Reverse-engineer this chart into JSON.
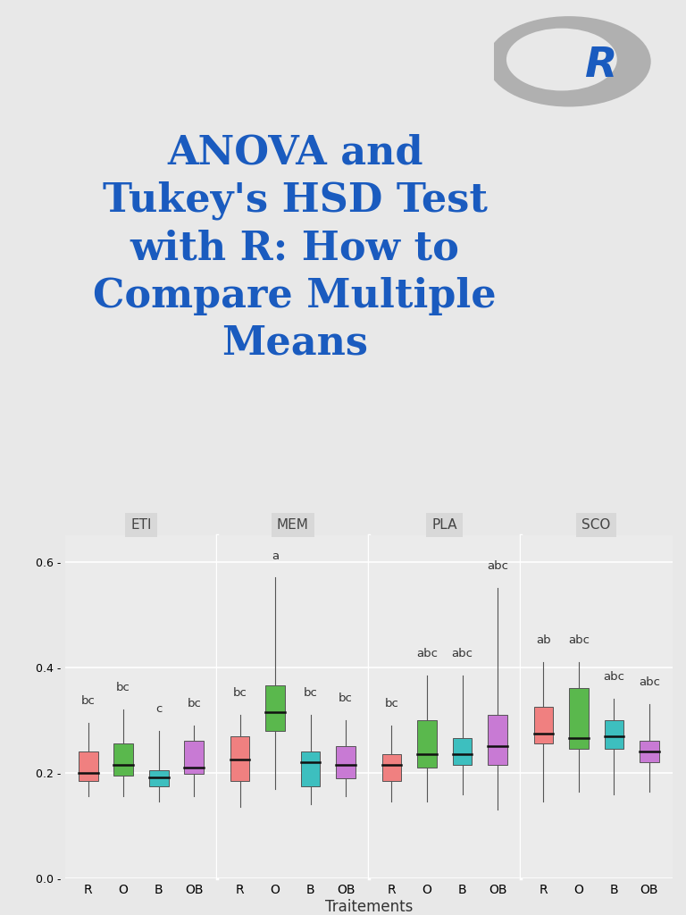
{
  "title": "ANOVA and\nTukey's HSD Test\nwith R: How to\nCompare Multiple\nMeans",
  "title_color": "#1a5bbf",
  "background_color": "#e8e8e8",
  "plot_bg_color": "#ebebeb",
  "panel_header_color": "#d8d8d8",
  "xlabel": "Traitements",
  "panels": [
    "ETI",
    "MEM",
    "PLA",
    "SCO"
  ],
  "treatments": [
    "R",
    "O",
    "B",
    "OB"
  ],
  "colors": [
    "#f08080",
    "#5ab84d",
    "#3dbfbf",
    "#c87ad4"
  ],
  "ylim": [
    0.0,
    0.65
  ],
  "yticks": [
    0.0,
    0.2,
    0.4,
    0.6
  ],
  "ytick_labels": [
    "0.0 -",
    "0.2 -",
    "0.4 -",
    "0.6 -"
  ],
  "boxes": {
    "ETI": {
      "R": {
        "q1": 0.185,
        "median": 0.2,
        "q3": 0.24,
        "whislo": 0.155,
        "whishi": 0.295
      },
      "O": {
        "q1": 0.195,
        "median": 0.215,
        "q3": 0.255,
        "whislo": 0.155,
        "whishi": 0.32
      },
      "B": {
        "q1": 0.175,
        "median": 0.192,
        "q3": 0.205,
        "whislo": 0.145,
        "whishi": 0.28
      },
      "OB": {
        "q1": 0.198,
        "median": 0.21,
        "q3": 0.26,
        "whislo": 0.155,
        "whishi": 0.29
      }
    },
    "MEM": {
      "R": {
        "q1": 0.185,
        "median": 0.225,
        "q3": 0.27,
        "whislo": 0.135,
        "whishi": 0.31
      },
      "O": {
        "q1": 0.28,
        "median": 0.315,
        "q3": 0.365,
        "whislo": 0.17,
        "whishi": 0.57
      },
      "B": {
        "q1": 0.175,
        "median": 0.22,
        "q3": 0.24,
        "whislo": 0.14,
        "whishi": 0.31
      },
      "OB": {
        "q1": 0.19,
        "median": 0.215,
        "q3": 0.25,
        "whislo": 0.155,
        "whishi": 0.3
      }
    },
    "PLA": {
      "R": {
        "q1": 0.185,
        "median": 0.215,
        "q3": 0.235,
        "whislo": 0.145,
        "whishi": 0.29
      },
      "O": {
        "q1": 0.21,
        "median": 0.235,
        "q3": 0.3,
        "whislo": 0.145,
        "whishi": 0.385
      },
      "B": {
        "q1": 0.215,
        "median": 0.235,
        "q3": 0.265,
        "whislo": 0.16,
        "whishi": 0.385
      },
      "OB": {
        "q1": 0.215,
        "median": 0.25,
        "q3": 0.31,
        "whislo": 0.13,
        "whishi": 0.55
      }
    },
    "SCO": {
      "R": {
        "q1": 0.255,
        "median": 0.275,
        "q3": 0.325,
        "whislo": 0.145,
        "whishi": 0.41
      },
      "O": {
        "q1": 0.245,
        "median": 0.265,
        "q3": 0.36,
        "whislo": 0.165,
        "whishi": 0.41
      },
      "B": {
        "q1": 0.245,
        "median": 0.27,
        "q3": 0.3,
        "whislo": 0.16,
        "whishi": 0.34
      },
      "OB": {
        "q1": 0.22,
        "median": 0.24,
        "q3": 0.26,
        "whislo": 0.165,
        "whishi": 0.33
      }
    }
  },
  "labels": {
    "ETI": {
      "R": "bc",
      "O": "bc",
      "B": "c",
      "OB": "bc"
    },
    "MEM": {
      "R": "bc",
      "O": "a",
      "B": "bc",
      "OB": "bc"
    },
    "PLA": {
      "R": "bc",
      "O": "abc",
      "B": "abc",
      "OB": "abc"
    },
    "SCO": {
      "R": "ab",
      "O": "abc",
      "B": "abc",
      "OB": "abc"
    }
  },
  "label_offsets": {
    "ETI": {
      "R": 0.03,
      "O": 0.03,
      "B": 0.03,
      "OB": 0.03
    },
    "MEM": {
      "R": 0.03,
      "O": 0.03,
      "B": 0.03,
      "OB": 0.03
    },
    "PLA": {
      "R": 0.03,
      "O": 0.03,
      "B": 0.03,
      "OB": 0.03
    },
    "SCO": {
      "R": 0.03,
      "O": 0.03,
      "B": 0.03,
      "OB": 0.03
    }
  }
}
